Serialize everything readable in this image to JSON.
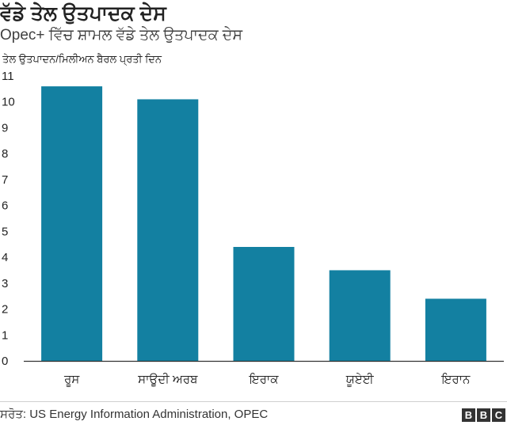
{
  "chart_data": {
    "type": "bar",
    "title": "ਵੱਡੇ ਤੇਲ ਉਤਪਾਦਕ ਦੇਸ",
    "subtitle": "Opec+ ਵਿੱਚ ਸ਼ਾਮਲ ਵੱਡੇ ਤੇਲ ਉਤਪਾਦਕ ਦੇਸ",
    "ylabel": "ਤੇਲ ਉਤਪਾਦਨ/ਮਿਲੀਅਨ ਬੈਰਲ ਪ੍ਰਤੀ ਦਿਨ",
    "xlabel": "",
    "categories": [
      "ਰੂਸ",
      "ਸਾਊਦੀ ਅਰਬ",
      "ਇਰਾਕ",
      "ਯੂਏਈ",
      "ਇਰਾਨ"
    ],
    "values": [
      10.6,
      10.1,
      4.4,
      3.5,
      2.4
    ],
    "ylim": [
      0,
      11
    ],
    "yticks": [
      "0",
      "1",
      "2",
      "3",
      "4",
      "5",
      "6",
      "7",
      "8",
      "9",
      "10",
      "11"
    ],
    "grid": false,
    "bar_color": "#1380A1"
  },
  "footer": {
    "source": "ਸਰੋਤ: US Energy Information Administration, OPEC",
    "logo_letters": [
      "B",
      "B",
      "C"
    ]
  }
}
